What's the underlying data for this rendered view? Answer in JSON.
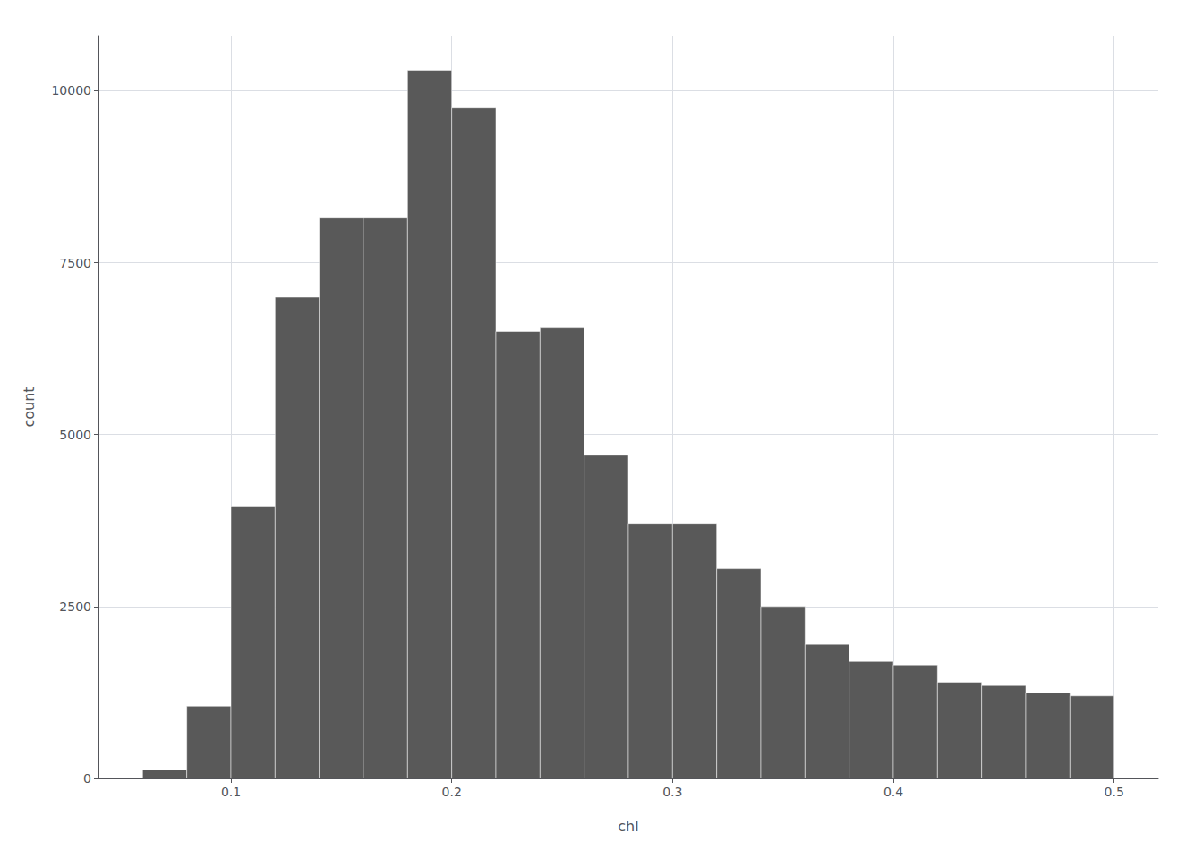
{
  "chart_data": {
    "type": "histogram",
    "xlabel": "chl",
    "ylabel": "count",
    "bins": [
      0.06,
      0.08,
      0.1,
      0.12,
      0.14,
      0.16,
      0.18,
      0.2,
      0.22,
      0.24,
      0.26,
      0.28,
      0.3,
      0.32,
      0.34,
      0.36,
      0.38,
      0.4,
      0.42,
      0.44,
      0.46,
      0.48,
      0.5
    ],
    "values": [
      130,
      1050,
      3950,
      7000,
      8150,
      8150,
      10300,
      9750,
      6500,
      6550,
      4700,
      3700,
      3700,
      3050,
      2500,
      1950,
      1700,
      1650,
      1400,
      1350,
      1250,
      1200
    ],
    "color": "#595959",
    "xlim": [
      0.04,
      0.52
    ],
    "ylim": [
      0,
      10800
    ],
    "xticks": [
      0.1,
      0.2,
      0.3,
      0.4,
      0.5
    ],
    "yticks": [
      0,
      2500,
      5000,
      7500,
      10000
    ],
    "grid": true
  }
}
